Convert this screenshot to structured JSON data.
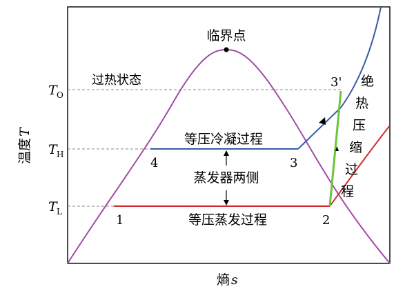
{
  "axes": {
    "ylabel": "温度",
    "ylabel_var": "T",
    "xlabel": "熵",
    "xlabel_var": "s"
  },
  "ticks": {
    "TO": {
      "main": "T",
      "sub": "O"
    },
    "TH": {
      "main": "T",
      "sub": "H"
    },
    "TL": {
      "main": "T",
      "sub": "L"
    }
  },
  "labels": {
    "critical_point": "临界点",
    "superheated": "过热状态",
    "condensation": "等压冷凝过程",
    "evaporator_sides": "蒸发器两侧",
    "evaporation": "等压蒸发过程",
    "compression_chars": [
      "绝",
      "热",
      "压",
      "缩",
      "过",
      "程"
    ]
  },
  "points": {
    "p1": "1",
    "p2": "2",
    "p3": "3",
    "p3p": "3'",
    "p4": "4"
  },
  "colors": {
    "dome": "#a04aa8",
    "condense": "#3a5aa8",
    "evaporate": "#d02a2a",
    "compress": "#6cc437",
    "dashed": "#888888"
  }
}
